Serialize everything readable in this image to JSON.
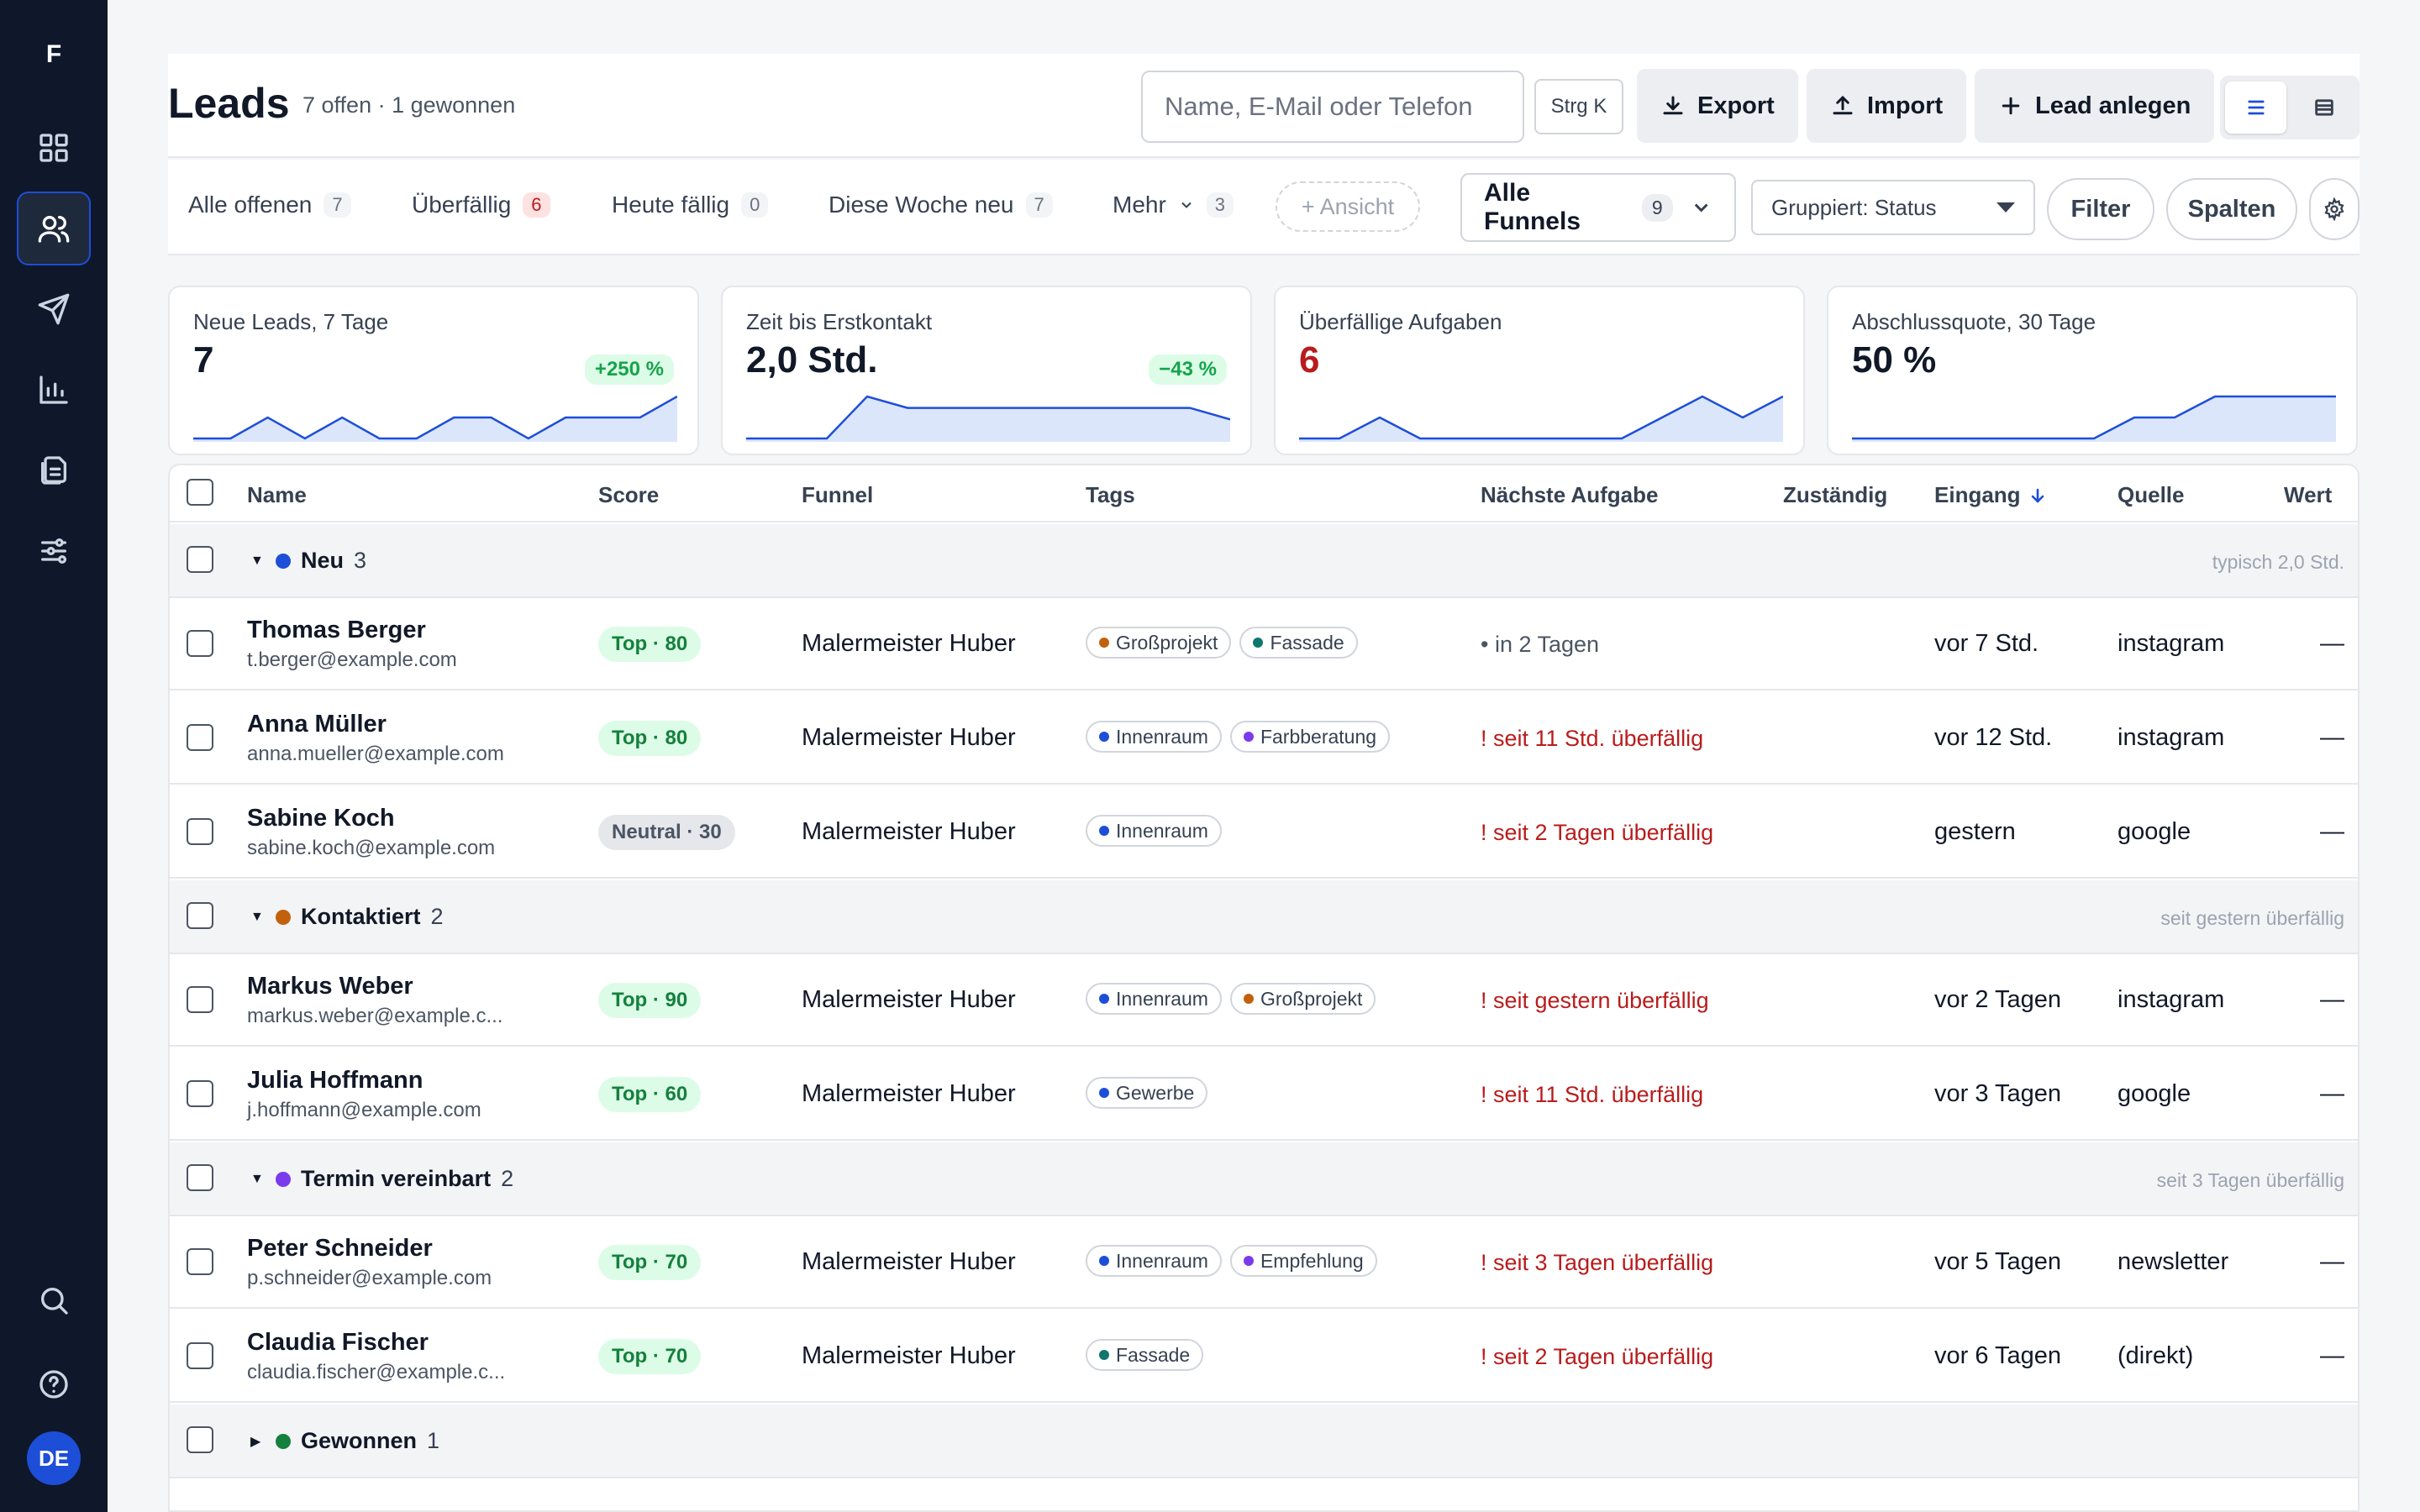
{
  "sidebar": {
    "logo": "F",
    "items": [
      {
        "name": "dashboard",
        "icon": "grid-icon"
      },
      {
        "name": "leads",
        "icon": "users-icon",
        "active": true
      },
      {
        "name": "campaigns",
        "icon": "send-icon"
      },
      {
        "name": "reports",
        "icon": "bar-chart-icon"
      },
      {
        "name": "documents",
        "icon": "files-icon"
      },
      {
        "name": "settings",
        "icon": "sliders-icon"
      }
    ],
    "bottom": [
      {
        "name": "search",
        "icon": "search-icon"
      },
      {
        "name": "help",
        "icon": "help-circle-icon"
      }
    ],
    "avatar": "DE"
  },
  "header": {
    "title": "Leads",
    "subtitle": "7 offen · 1 gewonnen",
    "search_placeholder": "Name, E-Mail oder Telefon",
    "shortcut": "Strg K",
    "export_label": "Export",
    "import_label": "Import",
    "create_label": "Lead anlegen"
  },
  "tabs": [
    {
      "label": "Alle offenen",
      "count": "7"
    },
    {
      "label": "Überfällig",
      "count": "6",
      "alert": true
    },
    {
      "label": "Heute fällig",
      "count": "0"
    },
    {
      "label": "Diese Woche neu",
      "count": "7"
    },
    {
      "label": "Mehr",
      "count": "3"
    }
  ],
  "add_view_label": "+ Ansicht",
  "funnel_select": {
    "label": "Alle Funnels",
    "count": "9"
  },
  "group_select": "Gruppiert: Status",
  "filter_label": "Filter",
  "columns_label": "Spalten",
  "kpis": [
    {
      "label": "Neue Leads, 7 Tage",
      "value": "7",
      "delta": "+250 %",
      "spark": [
        0,
        0,
        1,
        0,
        1,
        0,
        0,
        1,
        1,
        0,
        1,
        1,
        1,
        2
      ]
    },
    {
      "label": "Zeit bis Erstkontakt",
      "value": "2,0 Std.",
      "delta": "−43 %",
      "spark": [
        0,
        0,
        0,
        2.2,
        1.6,
        1.6,
        1.6,
        1.6,
        1.6,
        1.6,
        1.6,
        1.6,
        1.0
      ]
    },
    {
      "label": "Überfällige Aufgaben",
      "value": "6",
      "alert": true,
      "spark": [
        0,
        0,
        1,
        0,
        0,
        0,
        0,
        0,
        0,
        1,
        2,
        1,
        2
      ]
    },
    {
      "label": "Abschlussquote, 30 Tage",
      "value": "50 %",
      "spark": [
        0,
        0,
        0,
        0,
        0,
        0,
        0,
        1,
        1,
        2,
        2,
        2,
        2
      ]
    }
  ],
  "table": {
    "columns": {
      "name": "Name",
      "score": "Score",
      "funnel": "Funnel",
      "tags": "Tags",
      "task": "Nächste Aufgabe",
      "owner": "Zuständig",
      "received": "Eingang",
      "source": "Quelle",
      "value": "Wert"
    },
    "groups": [
      {
        "label": "Neu",
        "count": "3",
        "color": "#1d4ed8",
        "expanded": true,
        "hint": "typisch 2,0 Std."
      },
      {
        "label": "Kontaktiert",
        "count": "2",
        "color": "#c2610c",
        "expanded": true,
        "hint": "seit gestern überfällig"
      },
      {
        "label": "Termin vereinbart",
        "count": "2",
        "color": "#7c3aed",
        "expanded": true,
        "hint": "seit 3 Tagen überfällig"
      },
      {
        "label": "Gewonnen",
        "count": "1",
        "color": "#15803d",
        "expanded": false,
        "hint": ""
      }
    ],
    "rows": [
      {
        "name": "Thomas Berger",
        "email": "t.berger@example.com",
        "score": "Top · 80",
        "score_type": "top",
        "funnel": "Malermeister Huber",
        "tags": [
          {
            "label": "Großprojekt",
            "color": "#c2610c"
          },
          {
            "label": "Fassade",
            "color": "#0f766e"
          }
        ],
        "task": "• in 2 Tagen",
        "overdue": false,
        "received": "vor 7 Std.",
        "source": "instagram",
        "value": "—"
      },
      {
        "name": "Anna Müller",
        "email": "anna.mueller@example.com",
        "score": "Top · 80",
        "score_type": "top",
        "funnel": "Malermeister Huber",
        "tags": [
          {
            "label": "Innenraum",
            "color": "#1d4ed8"
          },
          {
            "label": "Farbberatung",
            "color": "#7c3aed"
          }
        ],
        "task": "! seit 11 Std. überfällig",
        "overdue": true,
        "received": "vor 12 Std.",
        "source": "instagram",
        "value": "—"
      },
      {
        "name": "Sabine Koch",
        "email": "sabine.koch@example.com",
        "score": "Neutral · 30",
        "score_type": "neutral",
        "funnel": "Malermeister Huber",
        "tags": [
          {
            "label": "Innenraum",
            "color": "#1d4ed8"
          }
        ],
        "task": "! seit 2 Tagen überfällig",
        "overdue": true,
        "received": "gestern",
        "source": "google",
        "value": "—"
      },
      {
        "name": "Markus Weber",
        "email": "markus.weber@example.c...",
        "score": "Top · 90",
        "score_type": "top",
        "funnel": "Malermeister Huber",
        "tags": [
          {
            "label": "Innenraum",
            "color": "#1d4ed8"
          },
          {
            "label": "Großprojekt",
            "color": "#c2610c"
          }
        ],
        "task": "! seit gestern überfällig",
        "overdue": true,
        "received": "vor 2 Tagen",
        "source": "instagram",
        "value": "—"
      },
      {
        "name": "Julia Hoffmann",
        "email": "j.hoffmann@example.com",
        "score": "Top · 60",
        "score_type": "top",
        "funnel": "Malermeister Huber",
        "tags": [
          {
            "label": "Gewerbe",
            "color": "#1d4ed8"
          }
        ],
        "task": "! seit 11 Std. überfällig",
        "overdue": true,
        "received": "vor 3 Tagen",
        "source": "google",
        "value": "—"
      },
      {
        "name": "Peter Schneider",
        "email": "p.schneider@example.com",
        "score": "Top · 70",
        "score_type": "top",
        "funnel": "Malermeister Huber",
        "tags": [
          {
            "label": "Innenraum",
            "color": "#1d4ed8"
          },
          {
            "label": "Empfehlung",
            "color": "#7c3aed"
          }
        ],
        "task": "! seit 3 Tagen überfällig",
        "overdue": true,
        "received": "vor 5 Tagen",
        "source": "newsletter",
        "value": "—"
      },
      {
        "name": "Claudia Fischer",
        "email": "claudia.fischer@example.c...",
        "score": "Top · 70",
        "score_type": "top",
        "funnel": "Malermeister Huber",
        "tags": [
          {
            "label": "Fassade",
            "color": "#0f766e"
          }
        ],
        "task": "! seit 2 Tagen überfällig",
        "overdue": true,
        "received": "vor 6 Tagen",
        "source": "(direkt)",
        "value": "—"
      }
    ]
  }
}
